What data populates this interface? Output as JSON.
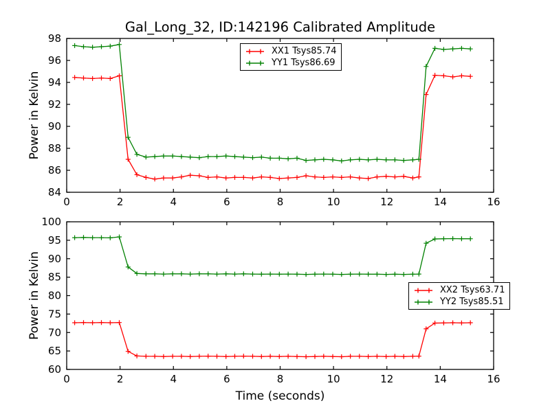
{
  "chart_data": [
    {
      "type": "line",
      "title": "Gal_Long_32, ID:142196 Calibrated Amplitude",
      "xlabel": "",
      "ylabel": "Power in Kelvin",
      "xlim": [
        0,
        16
      ],
      "ylim": [
        84,
        98
      ],
      "xticks": [
        0,
        2,
        4,
        6,
        8,
        10,
        12,
        14,
        16
      ],
      "yticks": [
        84,
        86,
        88,
        90,
        92,
        94,
        96,
        98
      ],
      "grid": false,
      "legend_position": "upper center",
      "x": [
        0.3,
        0.63,
        0.97,
        1.3,
        1.63,
        1.97,
        2.3,
        2.63,
        2.97,
        3.3,
        3.63,
        3.97,
        4.3,
        4.63,
        4.97,
        5.3,
        5.63,
        5.97,
        6.3,
        6.63,
        6.97,
        7.3,
        7.63,
        7.97,
        8.3,
        8.63,
        8.97,
        9.3,
        9.63,
        9.97,
        10.3,
        10.63,
        10.97,
        11.3,
        11.63,
        11.97,
        12.3,
        12.63,
        12.97,
        13.2,
        13.47,
        13.8,
        14.13,
        14.47,
        14.8,
        15.13
      ],
      "series": [
        {
          "name": "XX1",
          "label": "XX1 Tsys85.74",
          "color": "#ff0000",
          "marker": "plus",
          "values": [
            94.45,
            94.4,
            94.35,
            94.4,
            94.35,
            94.6,
            87.0,
            85.6,
            85.35,
            85.2,
            85.3,
            85.3,
            85.4,
            85.55,
            85.5,
            85.35,
            85.4,
            85.3,
            85.35,
            85.35,
            85.3,
            85.4,
            85.35,
            85.25,
            85.3,
            85.35,
            85.5,
            85.4,
            85.35,
            85.4,
            85.35,
            85.4,
            85.3,
            85.25,
            85.4,
            85.45,
            85.4,
            85.45,
            85.3,
            85.4,
            92.9,
            94.65,
            94.6,
            94.5,
            94.6,
            94.55
          ]
        },
        {
          "name": "YY1",
          "label": "YY1 Tsys86.69",
          "color": "#008000",
          "marker": "plus",
          "values": [
            97.35,
            97.25,
            97.2,
            97.25,
            97.3,
            97.45,
            89.0,
            87.45,
            87.2,
            87.25,
            87.3,
            87.3,
            87.25,
            87.2,
            87.15,
            87.25,
            87.25,
            87.3,
            87.25,
            87.2,
            87.15,
            87.2,
            87.1,
            87.1,
            87.05,
            87.1,
            86.9,
            86.95,
            87.0,
            86.95,
            86.85,
            86.95,
            87.0,
            86.95,
            87.0,
            86.95,
            86.95,
            86.9,
            86.95,
            87.0,
            95.45,
            97.1,
            97.0,
            97.05,
            97.1,
            97.05
          ]
        }
      ]
    },
    {
      "type": "line",
      "title": "",
      "xlabel": "Time (seconds)",
      "ylabel": "Power in Kelvin",
      "xlim": [
        0,
        16
      ],
      "ylim": [
        60,
        100
      ],
      "xticks": [
        0,
        2,
        4,
        6,
        8,
        10,
        12,
        14,
        16
      ],
      "yticks": [
        60,
        65,
        70,
        75,
        80,
        85,
        90,
        95,
        100
      ],
      "grid": false,
      "legend_position": "center right",
      "x": [
        0.3,
        0.63,
        0.97,
        1.3,
        1.63,
        1.97,
        2.3,
        2.63,
        2.97,
        3.3,
        3.63,
        3.97,
        4.3,
        4.63,
        4.97,
        5.3,
        5.63,
        5.97,
        6.3,
        6.63,
        6.97,
        7.3,
        7.63,
        7.97,
        8.3,
        8.63,
        8.97,
        9.3,
        9.63,
        9.97,
        10.3,
        10.63,
        10.97,
        11.3,
        11.63,
        11.97,
        12.3,
        12.63,
        12.97,
        13.2,
        13.47,
        13.8,
        14.13,
        14.47,
        14.8,
        15.13
      ],
      "series": [
        {
          "name": "XX2",
          "label": "XX2 Tsys63.71",
          "color": "#ff0000",
          "marker": "plus",
          "values": [
            72.65,
            72.7,
            72.65,
            72.7,
            72.65,
            72.7,
            64.9,
            63.65,
            63.55,
            63.55,
            63.5,
            63.55,
            63.55,
            63.5,
            63.55,
            63.6,
            63.55,
            63.5,
            63.55,
            63.6,
            63.55,
            63.5,
            63.55,
            63.5,
            63.55,
            63.5,
            63.45,
            63.5,
            63.55,
            63.5,
            63.45,
            63.55,
            63.55,
            63.5,
            63.55,
            63.5,
            63.55,
            63.5,
            63.55,
            63.6,
            71.0,
            72.55,
            72.6,
            72.65,
            72.6,
            72.65
          ]
        },
        {
          "name": "YY2",
          "label": "YY2 Tsys85.51",
          "color": "#008000",
          "marker": "plus",
          "values": [
            95.7,
            95.75,
            95.7,
            95.7,
            95.65,
            95.9,
            87.75,
            86.0,
            85.9,
            85.9,
            85.85,
            85.9,
            85.9,
            85.85,
            85.9,
            85.9,
            85.85,
            85.9,
            85.85,
            85.9,
            85.85,
            85.8,
            85.85,
            85.8,
            85.85,
            85.8,
            85.75,
            85.8,
            85.85,
            85.8,
            85.75,
            85.8,
            85.85,
            85.8,
            85.8,
            85.75,
            85.8,
            85.75,
            85.8,
            85.85,
            94.2,
            95.35,
            95.4,
            95.45,
            95.4,
            95.4
          ]
        }
      ]
    }
  ]
}
